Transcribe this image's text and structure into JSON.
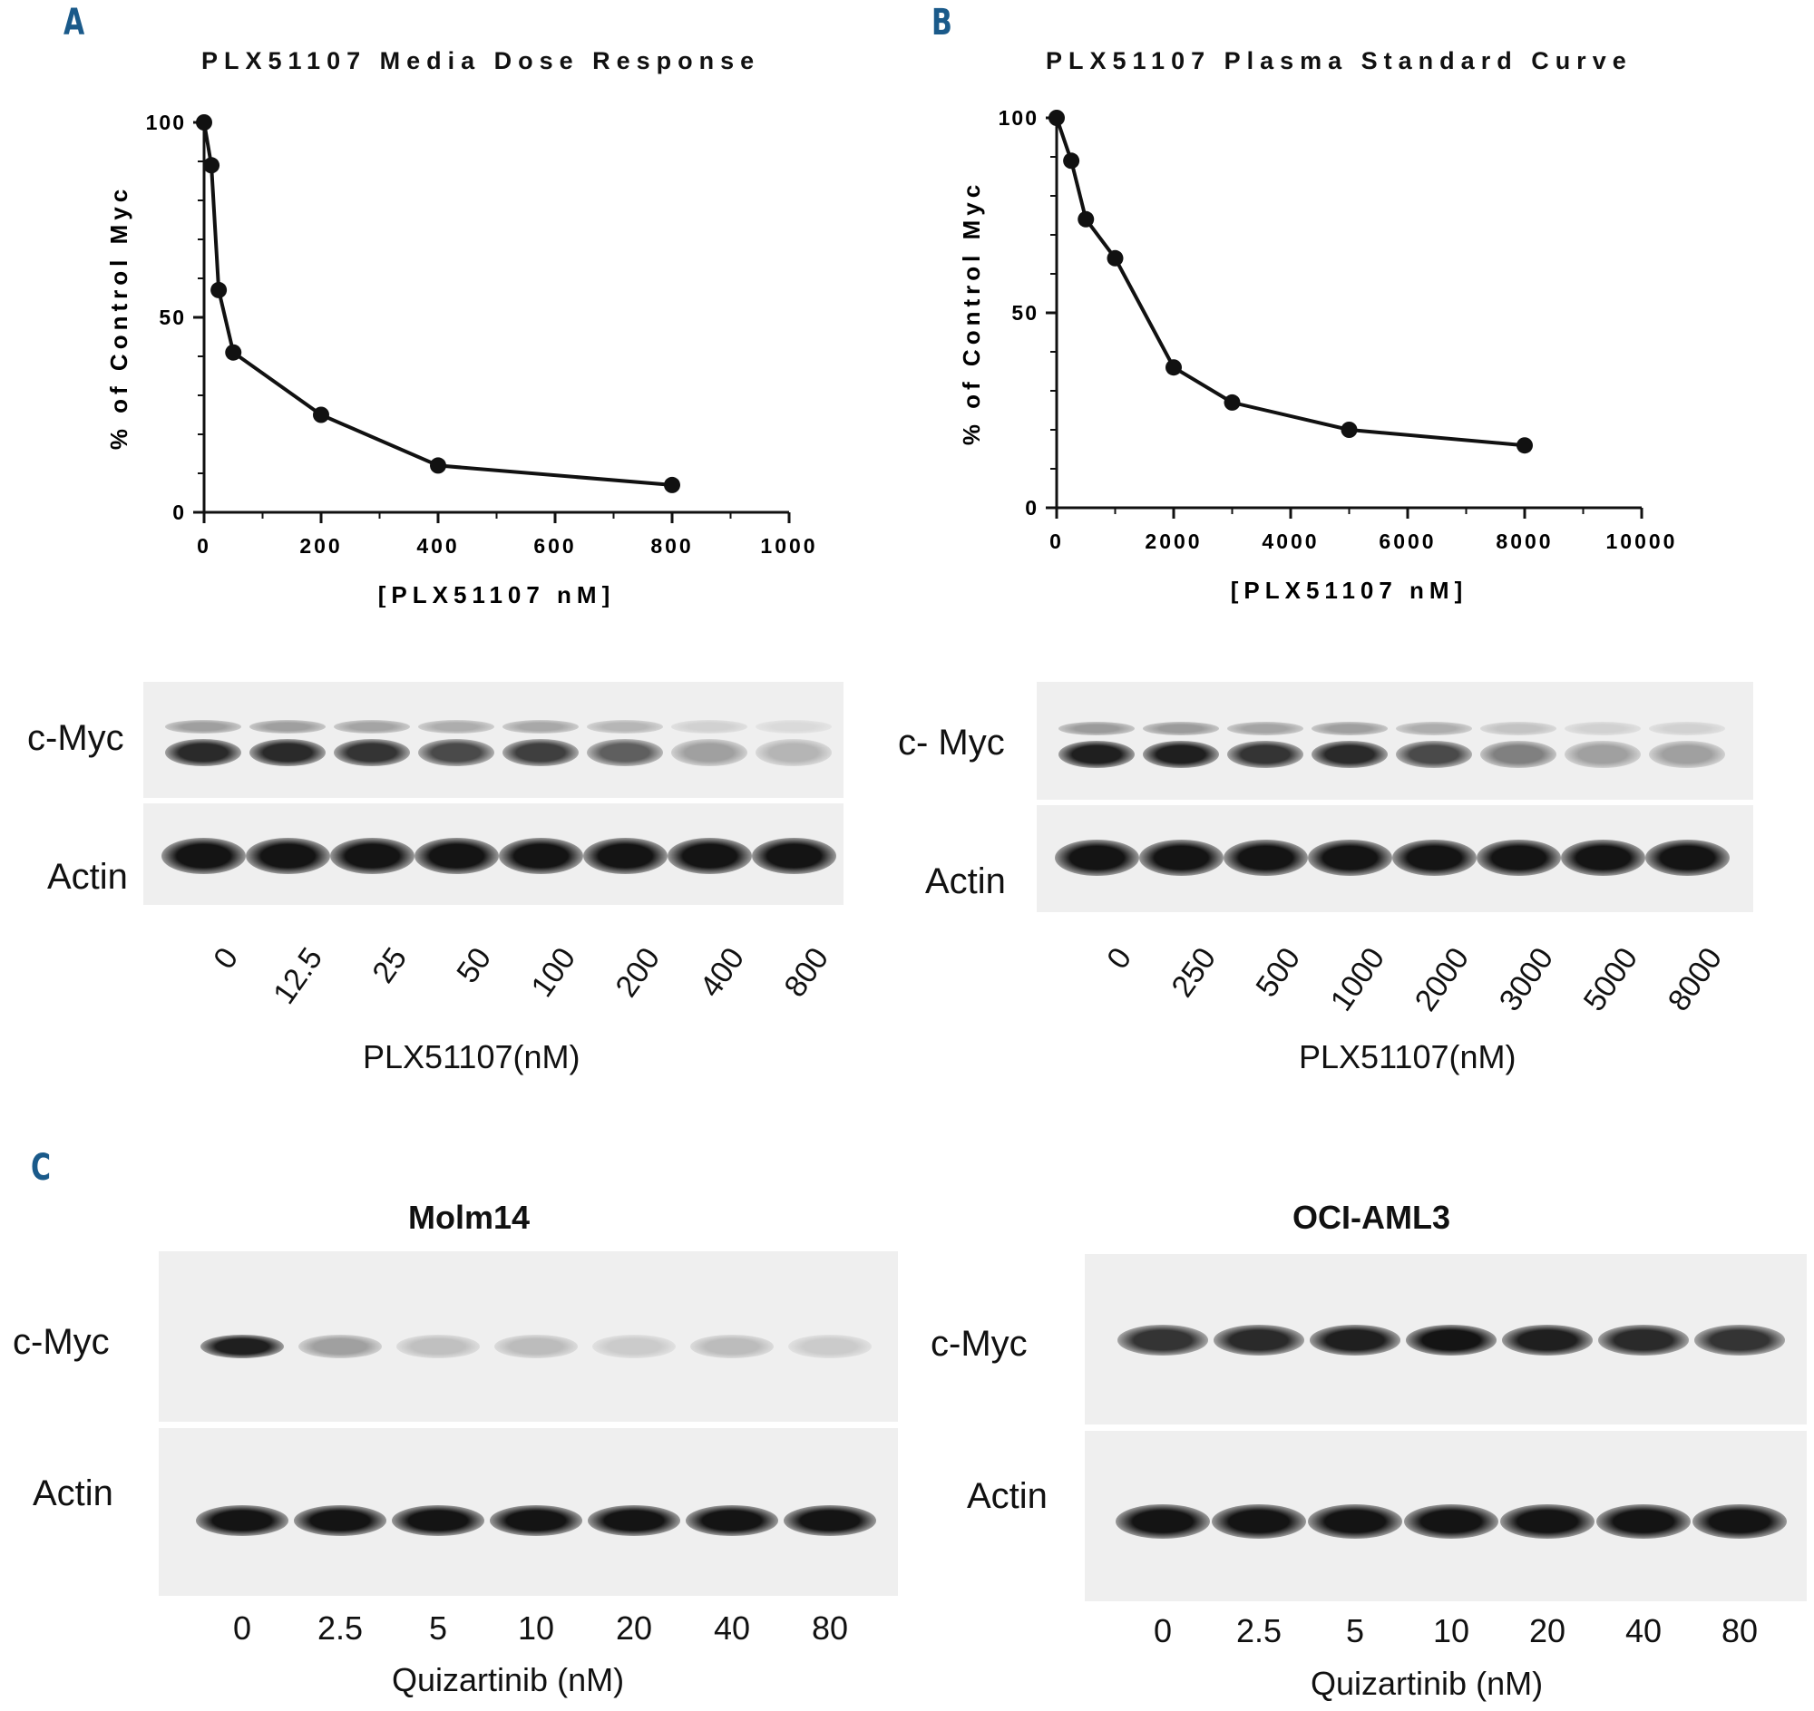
{
  "panels": {
    "a": {
      "letter": "A"
    },
    "b": {
      "letter": "B"
    },
    "c": {
      "letter": "C"
    }
  },
  "chart_data": [
    {
      "type": "line",
      "title": "PLX51107 Media Dose Response",
      "xlabel": "[PLX51107 nM]",
      "ylabel": "% of Control Myc",
      "xlim": [
        0,
        1000
      ],
      "ylim": [
        0,
        100
      ],
      "xticks": [
        0,
        200,
        400,
        600,
        800,
        1000
      ],
      "yticks": [
        0,
        50,
        100
      ],
      "x": [
        0,
        12.5,
        25,
        50,
        200,
        400,
        800
      ],
      "y": [
        100,
        89,
        57,
        41,
        25,
        12,
        7
      ],
      "grid": false
    },
    {
      "type": "line",
      "title": "PLX51107 Plasma Standard Curve",
      "xlabel": "[PLX51107 nM]",
      "ylabel": "% of Control Myc",
      "xlim": [
        0,
        10000
      ],
      "ylim": [
        0,
        100
      ],
      "xticks": [
        0,
        2000,
        4000,
        6000,
        8000,
        10000
      ],
      "yticks": [
        0,
        50,
        100
      ],
      "x": [
        0,
        250,
        500,
        1000,
        2000,
        3000,
        5000,
        8000
      ],
      "y": [
        100,
        89,
        74,
        64,
        36,
        27,
        20,
        16
      ],
      "grid": false
    }
  ],
  "blots": {
    "a": {
      "myc_label": "c-Myc",
      "actin_label": "Actin",
      "lanes": [
        "0",
        "12.5",
        "25",
        "50",
        "100",
        "200",
        "400",
        "800"
      ],
      "myc_intensity": [
        0.9,
        0.9,
        0.85,
        0.75,
        0.8,
        0.65,
        0.35,
        0.25
      ],
      "caption": "PLX51107(nM)"
    },
    "b": {
      "myc_label": "c- Myc",
      "actin_label": "Actin",
      "lanes": [
        "0",
        "250",
        "500",
        "1000",
        "2000",
        "3000",
        "5000",
        "8000"
      ],
      "myc_intensity": [
        0.95,
        0.95,
        0.85,
        0.9,
        0.75,
        0.5,
        0.35,
        0.35
      ],
      "caption": "PLX51107(nM)"
    },
    "c_molm14": {
      "title": "Molm14",
      "myc_label": "c-Myc",
      "actin_label": "Actin",
      "lanes": [
        "0",
        "2.5",
        "5",
        "10",
        "20",
        "40",
        "80"
      ],
      "myc_intensity": [
        0.95,
        0.35,
        0.2,
        0.22,
        0.15,
        0.22,
        0.15
      ],
      "caption": "Quizartinib (nM)"
    },
    "c_oci": {
      "title": "OCI-AML3",
      "myc_label": "c-Myc",
      "actin_label": "Actin",
      "lanes": [
        "0",
        "2.5",
        "5",
        "10",
        "20",
        "40",
        "80"
      ],
      "myc_intensity": [
        0.85,
        0.9,
        0.95,
        1.0,
        0.95,
        0.9,
        0.85
      ],
      "caption": "Quizartinib (nM)"
    }
  }
}
